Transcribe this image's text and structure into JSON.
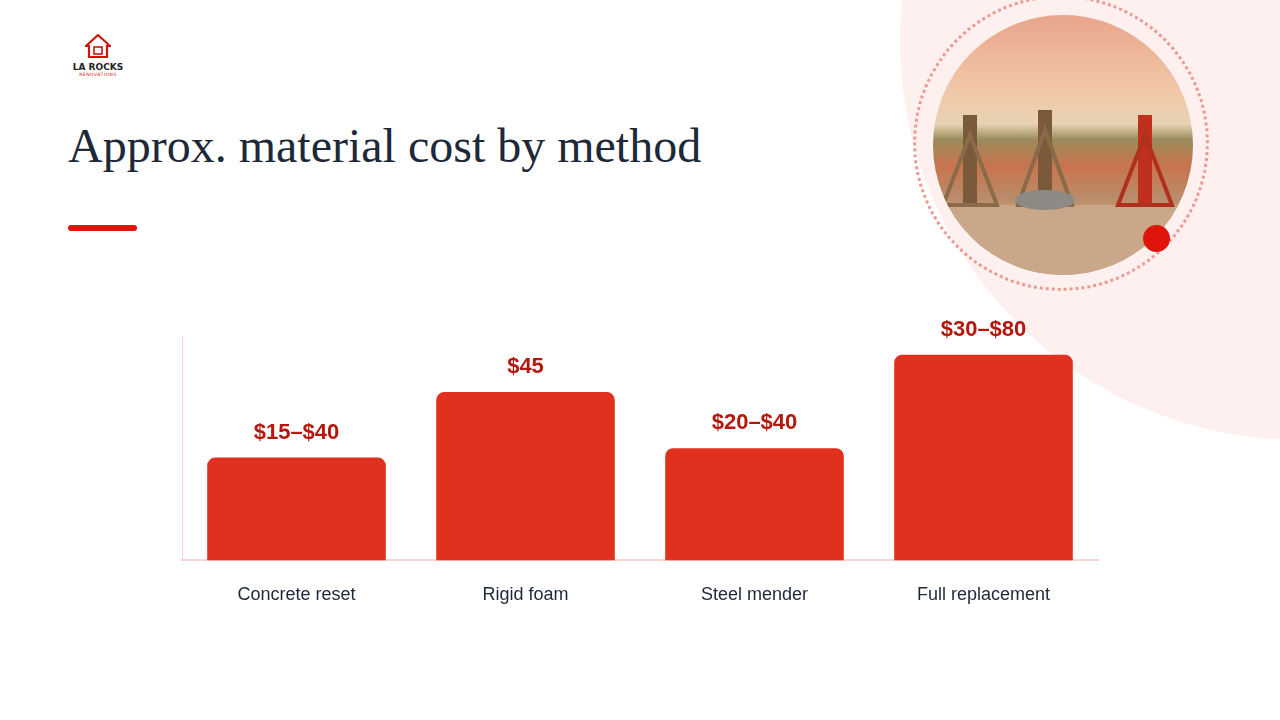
{
  "logo": {
    "name": "LA ROCKS",
    "tagline": "RENOVATIONS"
  },
  "chart_data": {
    "type": "bar",
    "title": "Approx. material cost by method",
    "categories": [
      "Concrete reset",
      "Rigid foam",
      "Steel mender",
      "Full replacement"
    ],
    "values": [
      27.5,
      45,
      30,
      55
    ],
    "value_labels": [
      "$15–$40",
      "$45",
      "$20–$40",
      "$30–$80"
    ],
    "color": "#e0301e",
    "ylim": [
      0,
      60
    ],
    "grid": false,
    "data_labels": true,
    "tick_labels": "x"
  }
}
